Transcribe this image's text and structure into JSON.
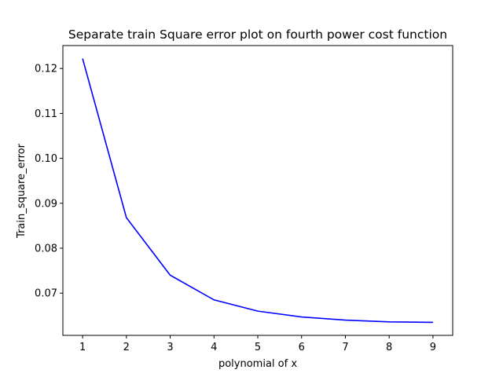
{
  "chart_data": {
    "type": "line",
    "title": "Separate train Square error plot on fourth power cost function",
    "xlabel": "polynomial of x",
    "ylabel": "Train_square_error",
    "x": [
      1,
      2,
      3,
      4,
      5,
      6,
      7,
      8,
      9
    ],
    "series": [
      {
        "values": [
          0.1222,
          0.0868,
          0.074,
          0.0685,
          0.066,
          0.0647,
          0.064,
          0.0636,
          0.0635
        ],
        "color": "#0000ff"
      }
    ],
    "xlim": [
      0.55,
      9.45
    ],
    "ylim": [
      0.0606,
      0.1251
    ],
    "xticks": [
      "1",
      "2",
      "3",
      "4",
      "5",
      "6",
      "7",
      "8",
      "9"
    ],
    "yticks": [
      "0.07",
      "0.08",
      "0.09",
      "0.10",
      "0.11",
      "0.12"
    ],
    "grid": false
  }
}
